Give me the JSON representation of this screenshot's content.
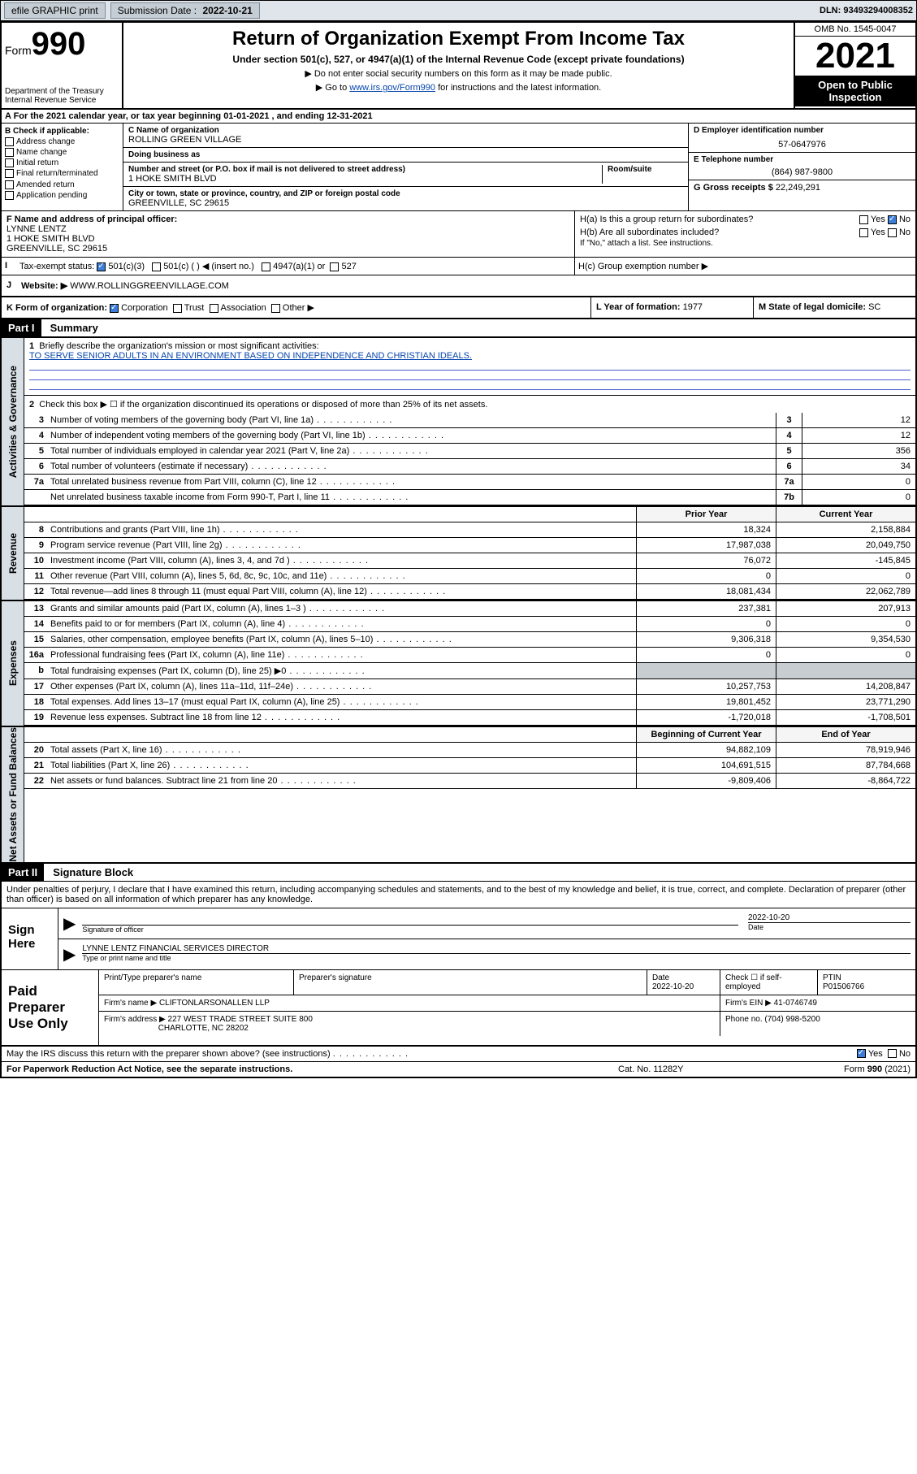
{
  "topbar": {
    "efile": "efile GRAPHIC print",
    "sub_label": "Submission Date :",
    "sub_date": "2022-10-21",
    "dln_label": "DLN:",
    "dln": "93493294008352"
  },
  "header": {
    "form_label": "Form",
    "form_num": "990",
    "dept": "Department of the Treasury Internal Revenue Service",
    "title": "Return of Organization Exempt From Income Tax",
    "subtitle": "Under section 501(c), 527, or 4947(a)(1) of the Internal Revenue Code (except private foundations)",
    "note1": "▶ Do not enter social security numbers on this form as it may be made public.",
    "note2_pre": "▶ Go to ",
    "note2_link": "www.irs.gov/Form990",
    "note2_post": " for instructions and the latest information.",
    "omb": "OMB No. 1545-0047",
    "year": "2021",
    "open": "Open to Public Inspection"
  },
  "section_a": "A For the 2021 calendar year, or tax year beginning 01-01-2021    , and ending 12-31-2021",
  "col_b": {
    "title": "B Check if applicable:",
    "opts": [
      "Address change",
      "Name change",
      "Initial return",
      "Final return/terminated",
      "Amended return",
      "Application pending"
    ]
  },
  "col_c": {
    "name_label": "C Name of organization",
    "name": "ROLLING GREEN VILLAGE",
    "dba_label": "Doing business as",
    "dba": "",
    "addr_label": "Number and street (or P.O. box if mail is not delivered to street address)",
    "room_label": "Room/suite",
    "addr": "1 HOKE SMITH BLVD",
    "city_label": "City or town, state or province, country, and ZIP or foreign postal code",
    "city": "GREENVILLE, SC  29615"
  },
  "col_de": {
    "d_label": "D Employer identification number",
    "d_val": "57-0647976",
    "e_label": "E Telephone number",
    "e_val": "(864) 987-9800",
    "g_label": "G Gross receipts $",
    "g_val": "22,249,291"
  },
  "fh": {
    "f_label": "F Name and address of principal officer:",
    "f_name": "LYNNE LENTZ",
    "f_addr1": "1 HOKE SMITH BLVD",
    "f_addr2": "GREENVILLE, SC  29615",
    "ha_label": "H(a)  Is this a group return for subordinates?",
    "hb_label": "H(b)  Are all subordinates included?",
    "hb_note": "If \"No,\" attach a list. See instructions.",
    "hc_label": "H(c)  Group exemption number ▶"
  },
  "i": {
    "label": "Tax-exempt status:",
    "opts": [
      "501(c)(3)",
      "501(c) (  ) ◀ (insert no.)",
      "4947(a)(1) or",
      "527"
    ]
  },
  "j": {
    "label": "Website: ▶",
    "val": "WWW.ROLLINGGREENVILLAGE.COM"
  },
  "k": {
    "label": "K Form of organization:",
    "opts": [
      "Corporation",
      "Trust",
      "Association",
      "Other ▶"
    ],
    "l_label": "L Year of formation:",
    "l_val": "1977",
    "m_label": "M State of legal domicile:",
    "m_val": "SC"
  },
  "part1": {
    "hdr": "Part I",
    "title": "Summary",
    "q1_label": "Briefly describe the organization's mission or most significant activities:",
    "q1_val": "TO SERVE SENIOR ADULTS IN AN ENVIRONMENT BASED ON INDEPENDENCE AND CHRISTIAN IDEALS.",
    "q2": "Check this box ▶ ☐  if the organization discontinued its operations or disposed of more than 25% of its net assets.",
    "governance": [
      {
        "n": "3",
        "d": "Number of voting members of the governing body (Part VI, line 1a)",
        "b": "3",
        "v": "12"
      },
      {
        "n": "4",
        "d": "Number of independent voting members of the governing body (Part VI, line 1b)",
        "b": "4",
        "v": "12"
      },
      {
        "n": "5",
        "d": "Total number of individuals employed in calendar year 2021 (Part V, line 2a)",
        "b": "5",
        "v": "356"
      },
      {
        "n": "6",
        "d": "Total number of volunteers (estimate if necessary)",
        "b": "6",
        "v": "34"
      },
      {
        "n": "7a",
        "d": "Total unrelated business revenue from Part VIII, column (C), line 12",
        "b": "7a",
        "v": "0"
      },
      {
        "n": "",
        "d": "Net unrelated business taxable income from Form 990-T, Part I, line 11",
        "b": "7b",
        "v": "0"
      }
    ],
    "prior_hdr": "Prior Year",
    "current_hdr": "Current Year",
    "revenue": [
      {
        "n": "8",
        "d": "Contributions and grants (Part VIII, line 1h)",
        "v1": "18,324",
        "v2": "2,158,884"
      },
      {
        "n": "9",
        "d": "Program service revenue (Part VIII, line 2g)",
        "v1": "17,987,038",
        "v2": "20,049,750"
      },
      {
        "n": "10",
        "d": "Investment income (Part VIII, column (A), lines 3, 4, and 7d )",
        "v1": "76,072",
        "v2": "-145,845"
      },
      {
        "n": "11",
        "d": "Other revenue (Part VIII, column (A), lines 5, 6d, 8c, 9c, 10c, and 11e)",
        "v1": "0",
        "v2": "0"
      },
      {
        "n": "12",
        "d": "Total revenue—add lines 8 through 11 (must equal Part VIII, column (A), line 12)",
        "v1": "18,081,434",
        "v2": "22,062,789"
      }
    ],
    "expenses": [
      {
        "n": "13",
        "d": "Grants and similar amounts paid (Part IX, column (A), lines 1–3 )",
        "v1": "237,381",
        "v2": "207,913"
      },
      {
        "n": "14",
        "d": "Benefits paid to or for members (Part IX, column (A), line 4)",
        "v1": "0",
        "v2": "0"
      },
      {
        "n": "15",
        "d": "Salaries, other compensation, employee benefits (Part IX, column (A), lines 5–10)",
        "v1": "9,306,318",
        "v2": "9,354,530"
      },
      {
        "n": "16a",
        "d": "Professional fundraising fees (Part IX, column (A), line 11e)",
        "v1": "0",
        "v2": "0"
      },
      {
        "n": "b",
        "d": "Total fundraising expenses (Part IX, column (D), line 25) ▶0",
        "v1": "GRAY",
        "v2": "GRAY"
      },
      {
        "n": "17",
        "d": "Other expenses (Part IX, column (A), lines 11a–11d, 11f–24e)",
        "v1": "10,257,753",
        "v2": "14,208,847"
      },
      {
        "n": "18",
        "d": "Total expenses. Add lines 13–17 (must equal Part IX, column (A), line 25)",
        "v1": "19,801,452",
        "v2": "23,771,290"
      },
      {
        "n": "19",
        "d": "Revenue less expenses. Subtract line 18 from line 12",
        "v1": "-1,720,018",
        "v2": "-1,708,501"
      }
    ],
    "net_hdr1": "Beginning of Current Year",
    "net_hdr2": "End of Year",
    "netassets": [
      {
        "n": "20",
        "d": "Total assets (Part X, line 16)",
        "v1": "94,882,109",
        "v2": "78,919,946"
      },
      {
        "n": "21",
        "d": "Total liabilities (Part X, line 26)",
        "v1": "104,691,515",
        "v2": "87,784,668"
      },
      {
        "n": "22",
        "d": "Net assets or fund balances. Subtract line 21 from line 20",
        "v1": "-9,809,406",
        "v2": "-8,864,722"
      }
    ],
    "vlabels": [
      "Activities & Governance",
      "Revenue",
      "Expenses",
      "Net Assets or Fund Balances"
    ]
  },
  "part2": {
    "hdr": "Part II",
    "title": "Signature Block",
    "intro": "Under penalties of perjury, I declare that I have examined this return, including accompanying schedules and statements, and to the best of my knowledge and belief, it is true, correct, and complete. Declaration of preparer (other than officer) is based on all information of which preparer has any knowledge.",
    "sign_here": "Sign Here",
    "sig_officer": "Signature of officer",
    "sig_date": "2022-10-20",
    "date_lbl": "Date",
    "officer_name": "LYNNE LENTZ  FINANCIAL SERVICES DIRECTOR",
    "name_title_lbl": "Type or print name and title",
    "paid_prep": "Paid Preparer Use Only",
    "prep_name_lbl": "Print/Type preparer's name",
    "prep_sig_lbl": "Preparer's signature",
    "prep_date_lbl": "Date",
    "prep_date": "2022-10-20",
    "self_emp": "Check ☐ if self-employed",
    "ptin_lbl": "PTIN",
    "ptin": "P01506766",
    "firm_name_lbl": "Firm's name    ▶",
    "firm_name": "CLIFTONLARSONALLEN LLP",
    "firm_ein_lbl": "Firm's EIN ▶",
    "firm_ein": "41-0746749",
    "firm_addr_lbl": "Firm's address ▶",
    "firm_addr1": "227 WEST TRADE STREET SUITE 800",
    "firm_addr2": "CHARLOTTE, NC  28202",
    "phone_lbl": "Phone no.",
    "phone": "(704) 998-5200",
    "discuss": "May the IRS discuss this return with the preparer shown above? (see instructions)",
    "yes": "Yes",
    "no": "No"
  },
  "footer": {
    "l": "For Paperwork Reduction Act Notice, see the separate instructions.",
    "m": "Cat. No. 11282Y",
    "r": "Form 990 (2021)"
  }
}
